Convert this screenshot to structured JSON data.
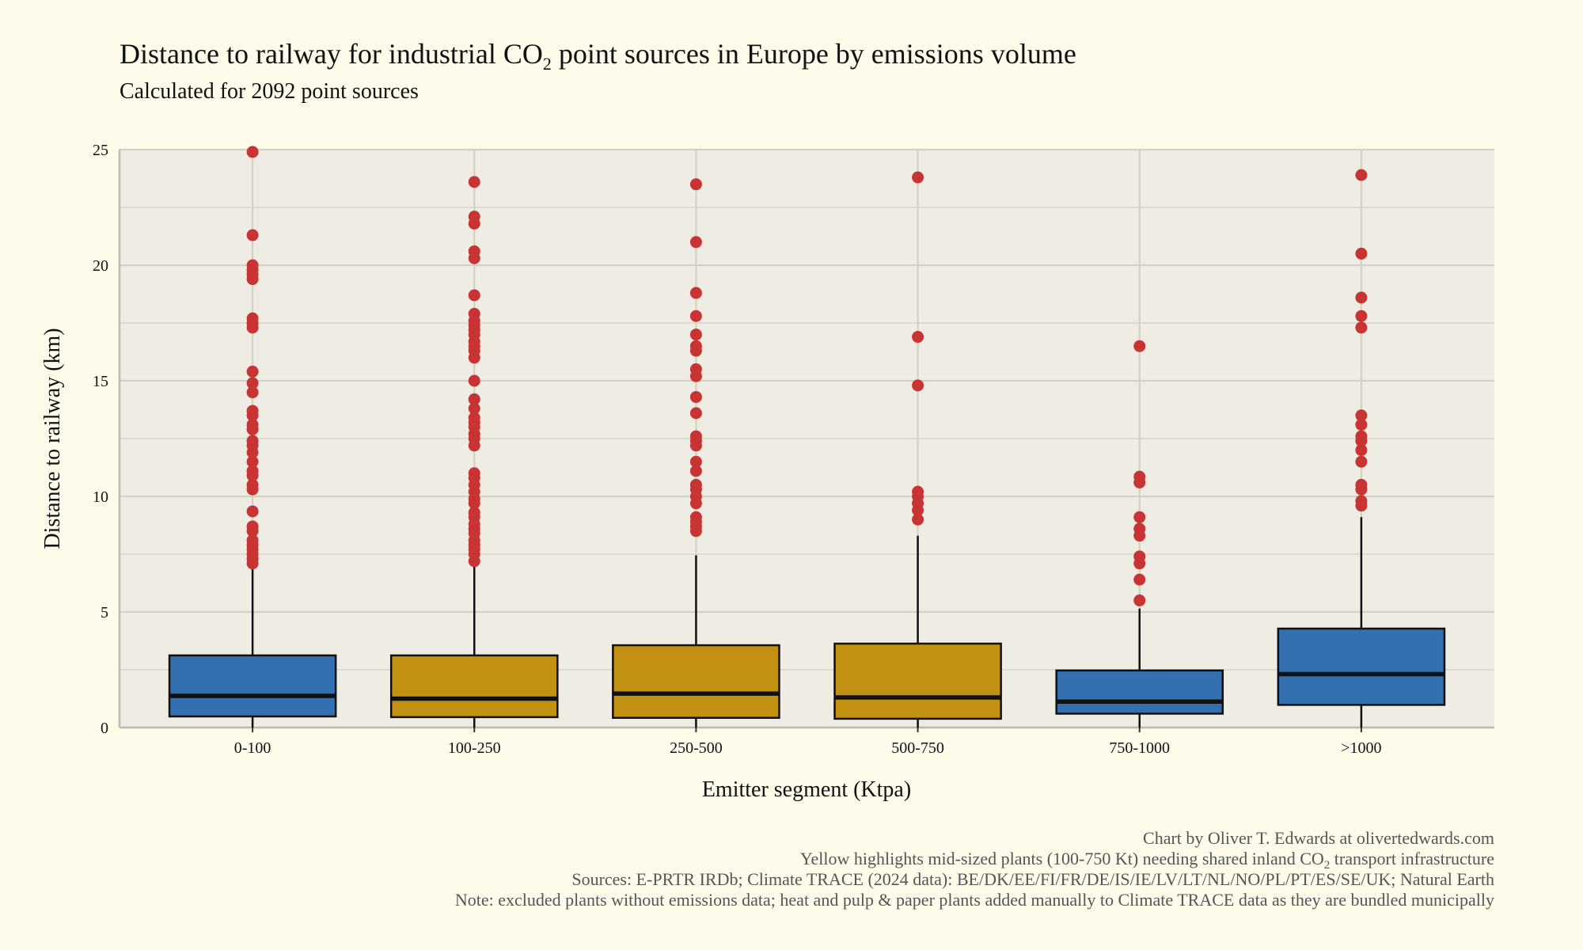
{
  "title_parts": {
    "before": "Distance to railway for industrial CO",
    "sub": "2",
    "after": " point sources in Europe by emissions volume"
  },
  "subtitle": "Calculated for 2092 point sources",
  "caption": {
    "line1": "Chart by Oliver T. Edwards at olivertedwards.com",
    "line2_parts": {
      "before": "Yellow highlights mid-sized plants (100-750 Kt) needing shared inland CO",
      "sub": "2",
      "after": " transport infrastructure"
    },
    "line3": "Sources: E-PRTR IRDb; Climate TRACE (2024 data): BE/DK/EE/FI/FR/DE/IS/IE/LV/LT/NL/NO/PL/PT/ES/SE/UK; Natural Earth",
    "line4": "Note: excluded plants without emissions data; heat and pulp & paper plants added manually to Climate TRACE data as they are bundled municipally"
  },
  "colors": {
    "background": "#FEFBEA",
    "panel": "#EFEDE3",
    "grid": "#D3D0C6",
    "blue": "#3370B0",
    "yellow": "#C39112",
    "outlier": "#C83434"
  },
  "chart_data": {
    "type": "boxplot",
    "xlabel": "Emitter segment (Ktpa)",
    "ylabel": "Distance to railway (km)",
    "ylim": [
      0,
      25
    ],
    "yticks": [
      0,
      5,
      10,
      15,
      20,
      25
    ],
    "grid": true,
    "categories": [
      "0-100",
      "100-250",
      "250-500",
      "500-750",
      "750-1000",
      ">1000"
    ],
    "boxes": [
      {
        "category": "0-100",
        "highlight": false,
        "min": 0,
        "q1": 0.48,
        "median": 1.37,
        "q3": 3.12,
        "whisker_high": 6.9,
        "outliers": [
          24.9,
          21.3,
          20.0,
          19.8,
          19.6,
          19.4,
          17.7,
          17.5,
          17.3,
          15.4,
          14.9,
          14.5,
          13.7,
          13.5,
          13.1,
          12.9,
          12.4,
          12.2,
          11.9,
          11.5,
          11.1,
          10.9,
          10.5,
          10.3,
          9.35,
          8.7,
          8.5,
          8.1,
          7.9,
          7.7,
          7.5,
          7.3,
          7.1
        ]
      },
      {
        "category": "100-250",
        "highlight": true,
        "min": 0,
        "q1": 0.45,
        "median": 1.25,
        "q3": 3.12,
        "whisker_high": 7.05,
        "outliers": [
          23.6,
          22.1,
          21.8,
          20.6,
          20.3,
          18.7,
          17.9,
          17.6,
          17.4,
          17.2,
          17.0,
          16.7,
          16.5,
          16.3,
          16.0,
          15.0,
          14.2,
          13.8,
          13.4,
          13.2,
          13.0,
          12.7,
          12.5,
          12.2,
          11.0,
          10.8,
          10.5,
          10.2,
          9.9,
          9.7,
          9.3,
          9.1,
          8.8,
          8.6,
          8.4,
          8.1,
          7.9,
          7.7,
          7.5,
          7.2
        ]
      },
      {
        "category": "250-500",
        "highlight": true,
        "min": 0,
        "q1": 0.42,
        "median": 1.47,
        "q3": 3.56,
        "whisker_high": 7.45,
        "outliers": [
          23.5,
          21.0,
          18.8,
          17.8,
          17.0,
          16.5,
          16.3,
          15.5,
          15.2,
          14.3,
          13.6,
          12.6,
          12.4,
          12.2,
          11.5,
          11.1,
          10.5,
          10.3,
          10.0,
          9.7,
          9.1,
          8.9,
          8.7,
          8.5
        ]
      },
      {
        "category": "500-750",
        "highlight": true,
        "min": 0,
        "q1": 0.38,
        "median": 1.3,
        "q3": 3.63,
        "whisker_high": 8.3,
        "outliers": [
          23.8,
          16.9,
          14.8,
          10.2,
          10.0,
          9.7,
          9.4,
          9.0
        ]
      },
      {
        "category": "750-1000",
        "highlight": false,
        "min": 0,
        "q1": 0.6,
        "median": 1.12,
        "q3": 2.47,
        "whisker_high": 5.15,
        "outliers": [
          16.5,
          10.85,
          10.6,
          9.1,
          8.6,
          8.3,
          7.4,
          7.1,
          6.4,
          5.5
        ]
      },
      {
        "category": ">1000",
        "highlight": false,
        "min": 0,
        "q1": 0.98,
        "median": 2.31,
        "q3": 4.28,
        "whisker_high": 9.1,
        "outliers": [
          23.9,
          20.5,
          18.6,
          17.8,
          17.3,
          13.5,
          13.1,
          12.6,
          12.4,
          12.0,
          11.5,
          10.5,
          10.3,
          9.8,
          9.6
        ]
      }
    ]
  }
}
